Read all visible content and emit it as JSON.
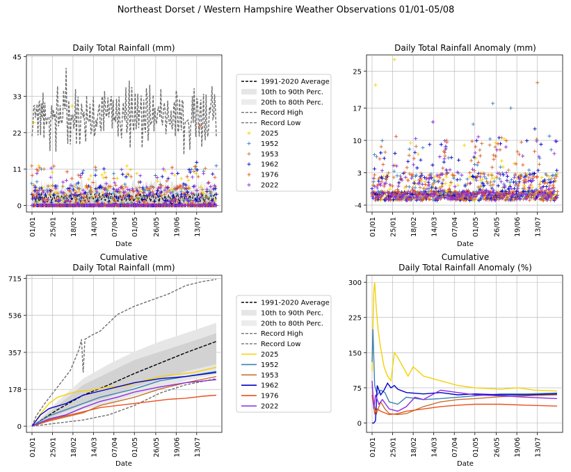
{
  "suptitle": "Northeast Dorset / Western Hampshire Weather Observations 01/01-05/08",
  "colors": {
    "average": "#000000",
    "band_outer": "#e6e6e6",
    "band_inner": "#d2d2d2",
    "record": "#6e6e6e",
    "grid": "#b0b0b0",
    "series": {
      "2025": "#f5d000",
      "1952": "#3b7fb5",
      "1953": "#c8702a",
      "1962": "#0000c8",
      "1976": "#e8501c",
      "2022": "#8a2be2"
    }
  },
  "legend_labels": [
    "1991-2020 Average",
    "10th to 90th Perc.",
    "20th to 80th Perc.",
    "Record High",
    "Record Low",
    "2025",
    "1952",
    "1953",
    "1962",
    "1976",
    "2022"
  ],
  "x_ticks": [
    "01/01",
    "25/01",
    "18/02",
    "14/03",
    "07/04",
    "01/05",
    "26/05",
    "19/06",
    "13/07"
  ],
  "x_tick_days": [
    0,
    24,
    48,
    72,
    96,
    120,
    145,
    169,
    193
  ],
  "chart_data": [
    {
      "id": "rain",
      "type": "scatter",
      "title": "Daily Total Rainfall (mm)",
      "title2": "",
      "xlabel": "Date",
      "ylabel": "",
      "yticks": [
        0,
        11,
        22,
        33,
        45
      ],
      "ylim": [
        -2,
        45.5
      ],
      "x_range_days": [
        0,
        216
      ],
      "series": [
        "2025",
        "1952",
        "1953",
        "1962",
        "1976",
        "2022"
      ],
      "highlights": [
        {
          "name": "2025",
          "day": 2,
          "value": 25
        },
        {
          "name": "2025",
          "day": 8,
          "value": 12
        },
        {
          "name": "2025",
          "day": 47,
          "value": 30
        },
        {
          "name": "1976",
          "day": 197,
          "value": 24
        },
        {
          "name": "1962",
          "day": 193,
          "value": 13
        },
        {
          "name": "1952",
          "day": 216,
          "value": 12
        }
      ]
    },
    {
      "id": "anom",
      "type": "scatter",
      "title": "Daily Total Rainfall Anomaly (mm)",
      "title2": "",
      "xlabel": "Date",
      "ylabel": "",
      "yticks": [
        -4,
        3,
        10,
        17,
        25
      ],
      "ylim": [
        -5.5,
        28.5
      ],
      "x_range_days": [
        0,
        216
      ],
      "series": [
        "2025",
        "1952",
        "1953",
        "1962",
        "1976",
        "2022"
      ],
      "highlights": [
        {
          "name": "2025",
          "day": 26,
          "value": 27.5
        },
        {
          "name": "2025",
          "day": 4,
          "value": 22
        },
        {
          "name": "1953",
          "day": 193,
          "value": 22.5
        },
        {
          "name": "1952",
          "day": 141,
          "value": 18
        },
        {
          "name": "1952",
          "day": 162,
          "value": 17
        },
        {
          "name": "2022",
          "day": 71,
          "value": 14
        },
        {
          "name": "1952",
          "day": 118,
          "value": 13.5
        },
        {
          "name": "1962",
          "day": 190,
          "value": 12.5
        }
      ]
    },
    {
      "id": "cum",
      "type": "line",
      "title": "Cumulative",
      "title2": "Daily Total Rainfall (mm)",
      "xlabel": "Date",
      "ylabel": "",
      "yticks": [
        0,
        178,
        357,
        536,
        715
      ],
      "ylim": [
        -30,
        730
      ],
      "x_range_days": [
        0,
        216
      ],
      "average": {
        "x": [
          0,
          30,
          60,
          90,
          120,
          150,
          180,
          216
        ],
        "y": [
          0,
          80,
          150,
          200,
          255,
          305,
          355,
          410
        ]
      },
      "p10": {
        "x": [
          0,
          30,
          60,
          90,
          120,
          150,
          180,
          216
        ],
        "y": [
          0,
          40,
          80,
          110,
          150,
          180,
          220,
          250
        ]
      },
      "p90": {
        "x": [
          0,
          30,
          60,
          90,
          120,
          150,
          180,
          216
        ],
        "y": [
          0,
          120,
          230,
          300,
          360,
          410,
          450,
          500
        ]
      },
      "p20": {
        "x": [
          0,
          30,
          60,
          90,
          120,
          150,
          180,
          216
        ],
        "y": [
          0,
          55,
          105,
          140,
          190,
          225,
          265,
          300
        ]
      },
      "p80": {
        "x": [
          0,
          30,
          60,
          90,
          120,
          150,
          180,
          216
        ],
        "y": [
          0,
          100,
          200,
          260,
          320,
          360,
          400,
          450
        ]
      },
      "record_high": {
        "x": [
          0,
          5,
          15,
          30,
          45,
          55,
          58,
          60,
          62,
          70,
          80,
          90,
          100,
          120,
          140,
          160,
          180,
          200,
          216
        ],
        "y": [
          0,
          50,
          110,
          190,
          270,
          370,
          420,
          260,
          420,
          440,
          460,
          500,
          540,
          580,
          610,
          640,
          680,
          700,
          710
        ]
      },
      "record_low": {
        "x": [
          0,
          30,
          60,
          90,
          120,
          150,
          180,
          216
        ],
        "y": [
          0,
          15,
          30,
          55,
          100,
          160,
          200,
          230
        ]
      },
      "series": [
        {
          "name": "2025",
          "x": [
            0,
            10,
            20,
            30,
            50,
            70,
            90,
            110,
            130,
            150,
            170,
            190,
            216
          ],
          "y": [
            0,
            60,
            110,
            140,
            165,
            175,
            190,
            195,
            220,
            240,
            250,
            260,
            285
          ]
        },
        {
          "name": "1952",
          "x": [
            0,
            20,
            40,
            60,
            80,
            100,
            120,
            150,
            180,
            216
          ],
          "y": [
            0,
            50,
            80,
            110,
            140,
            160,
            180,
            220,
            240,
            265
          ]
        },
        {
          "name": "1953",
          "x": [
            0,
            20,
            40,
            60,
            80,
            100,
            120,
            150,
            180,
            216
          ],
          "y": [
            0,
            25,
            45,
            65,
            100,
            120,
            140,
            180,
            210,
            240
          ]
        },
        {
          "name": "1962",
          "x": [
            0,
            10,
            20,
            40,
            60,
            80,
            100,
            120,
            150,
            180,
            216
          ],
          "y": [
            0,
            55,
            85,
            110,
            150,
            170,
            190,
            210,
            230,
            240,
            260
          ]
        },
        {
          "name": "1976",
          "x": [
            0,
            20,
            40,
            60,
            80,
            100,
            120,
            140,
            160,
            180,
            200,
            216
          ],
          "y": [
            0,
            30,
            50,
            70,
            90,
            100,
            110,
            120,
            130,
            135,
            145,
            150
          ]
        },
        {
          "name": "2022",
          "x": [
            0,
            20,
            40,
            60,
            80,
            100,
            120,
            150,
            180,
            216
          ],
          "y": [
            0,
            35,
            55,
            90,
            120,
            140,
            165,
            190,
            210,
            225
          ]
        }
      ]
    },
    {
      "id": "cumanom",
      "type": "line",
      "title": "Cumulative",
      "title2": "Daily Total Rainfall Anomaly (%)",
      "xlabel": "Date",
      "ylabel": "",
      "yticks": [
        0,
        75,
        150,
        225,
        300
      ],
      "ylim": [
        -20,
        315
      ],
      "x_range_days": [
        0,
        216
      ],
      "series": [
        {
          "name": "2025",
          "x": [
            0,
            1,
            2,
            3,
            5,
            7,
            10,
            14,
            18,
            22,
            26,
            30,
            36,
            42,
            48,
            54,
            60,
            70,
            80,
            100,
            120,
            150,
            170,
            190,
            216
          ],
          "y": [
            110,
            200,
            280,
            300,
            240,
            200,
            160,
            120,
            100,
            90,
            150,
            140,
            120,
            100,
            120,
            110,
            100,
            95,
            90,
            80,
            75,
            72,
            75,
            70,
            68
          ]
        },
        {
          "name": "1952",
          "x": [
            0,
            1,
            3,
            6,
            10,
            15,
            20,
            30,
            40,
            60,
            80,
            100,
            120,
            150,
            180,
            216
          ],
          "y": [
            130,
            200,
            80,
            60,
            70,
            65,
            45,
            40,
            55,
            50,
            52,
            55,
            58,
            62,
            62,
            64
          ]
        },
        {
          "name": "1953",
          "x": [
            0,
            2,
            5,
            10,
            15,
            20,
            30,
            40,
            60,
            80,
            100,
            120,
            150,
            180,
            216
          ],
          "y": [
            80,
            40,
            20,
            45,
            30,
            20,
            18,
            20,
            35,
            45,
            50,
            52,
            56,
            58,
            60
          ]
        },
        {
          "name": "1962",
          "x": [
            0,
            2,
            4,
            6,
            10,
            14,
            18,
            22,
            26,
            30,
            40,
            60,
            80,
            100,
            120,
            150,
            180,
            216
          ],
          "y": [
            0,
            0,
            5,
            80,
            60,
            70,
            85,
            75,
            80,
            72,
            65,
            62,
            65,
            60,
            62,
            60,
            60,
            62
          ]
        },
        {
          "name": "1976",
          "x": [
            0,
            3,
            6,
            10,
            20,
            30,
            40,
            60,
            80,
            100,
            120,
            150,
            180,
            216
          ],
          "y": [
            60,
            20,
            30,
            25,
            18,
            20,
            25,
            30,
            35,
            38,
            40,
            40,
            38,
            36
          ]
        },
        {
          "name": "2022",
          "x": [
            0,
            2,
            4,
            8,
            12,
            20,
            30,
            40,
            50,
            60,
            80,
            100,
            120,
            150,
            180,
            216
          ],
          "y": [
            90,
            30,
            60,
            40,
            50,
            30,
            25,
            35,
            55,
            50,
            70,
            65,
            60,
            58,
            55,
            52
          ]
        }
      ]
    }
  ]
}
